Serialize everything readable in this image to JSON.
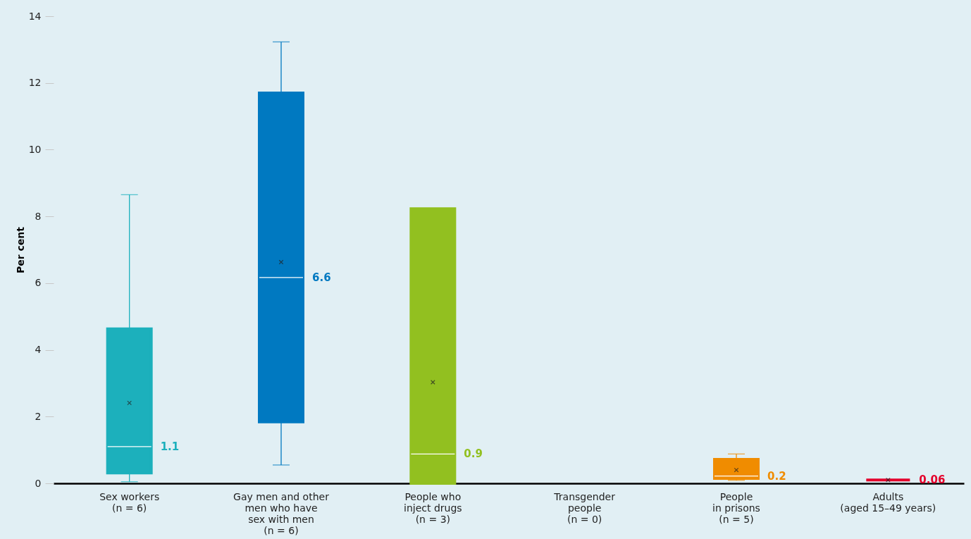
{
  "chart_data": {
    "type": "box",
    "ylabel": "Per cent",
    "categories": [
      "Sex workers\n(n = 6)",
      "Gay men and other\nmen who have\nsex with men\n(n = 6)",
      "People who\ninject drugs\n(n = 3)",
      "Transgender\npeople\n(n = 0)",
      "People\nin prisons\n(n = 5)",
      "Adults\n(aged 15–49 years)"
    ],
    "boxes": [
      {
        "low": 0.05,
        "q1": 0.31,
        "median": 1.1,
        "q3": 4.63,
        "high": 8.65,
        "mean": 2.41
      },
      {
        "low": 0.55,
        "q1": 1.84,
        "median": 6.17,
        "q3": 11.7,
        "high": 13.23,
        "mean": 6.63
      },
      {
        "q1": 0,
        "median": 0.88,
        "q3": 8.23,
        "mean": 3.03
      },
      null,
      {
        "low": 0.09,
        "q1": 0.15,
        "median": 0.22,
        "q3": 0.72,
        "high": 0.88,
        "mean": 0.4
      },
      {
        "q1": 0.1,
        "median": 0.1,
        "q3": 0.1,
        "mean": 0.1
      }
    ],
    "colors": [
      "#1cb0bc",
      "#0079c1",
      "#92c020",
      null,
      "#f08c00",
      "#e4002b"
    ],
    "value_labels": [
      "1.1",
      "6.6",
      "0.9",
      null,
      "0.2",
      "0.06"
    ],
    "ylim": [
      0,
      14
    ],
    "yticks": [
      0,
      2,
      4,
      6,
      8,
      10,
      12,
      14
    ],
    "grid": false
  }
}
